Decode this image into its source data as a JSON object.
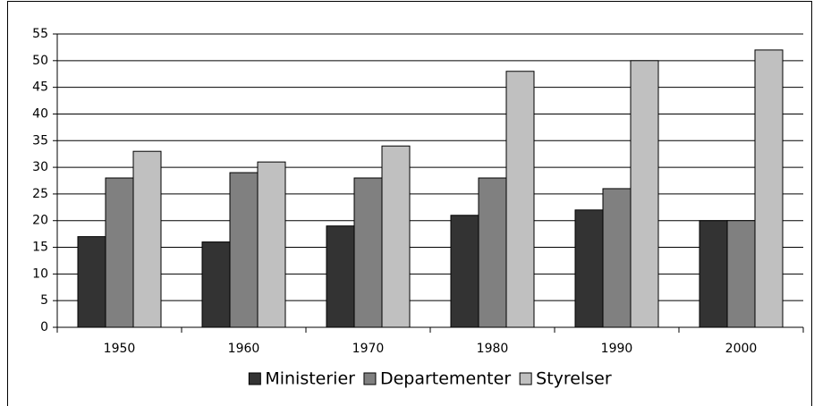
{
  "chart_data": {
    "type": "bar",
    "categories": [
      "1950",
      "1960",
      "1970",
      "1980",
      "1990",
      "2000"
    ],
    "series": [
      {
        "name": "Ministerier",
        "color": "#333333",
        "values": [
          17,
          16,
          19,
          21,
          22,
          20
        ]
      },
      {
        "name": "Departementer",
        "color": "#808080",
        "values": [
          28,
          29,
          28,
          28,
          26,
          20
        ]
      },
      {
        "name": "Styrelser",
        "color": "#c0c0c0",
        "values": [
          33,
          31,
          34,
          48,
          50,
          52
        ]
      }
    ],
    "ylim": [
      0,
      55
    ],
    "yticks": [
      0,
      5,
      10,
      15,
      20,
      25,
      30,
      35,
      40,
      45,
      50,
      55
    ],
    "grid": true,
    "legend": "bottom"
  }
}
